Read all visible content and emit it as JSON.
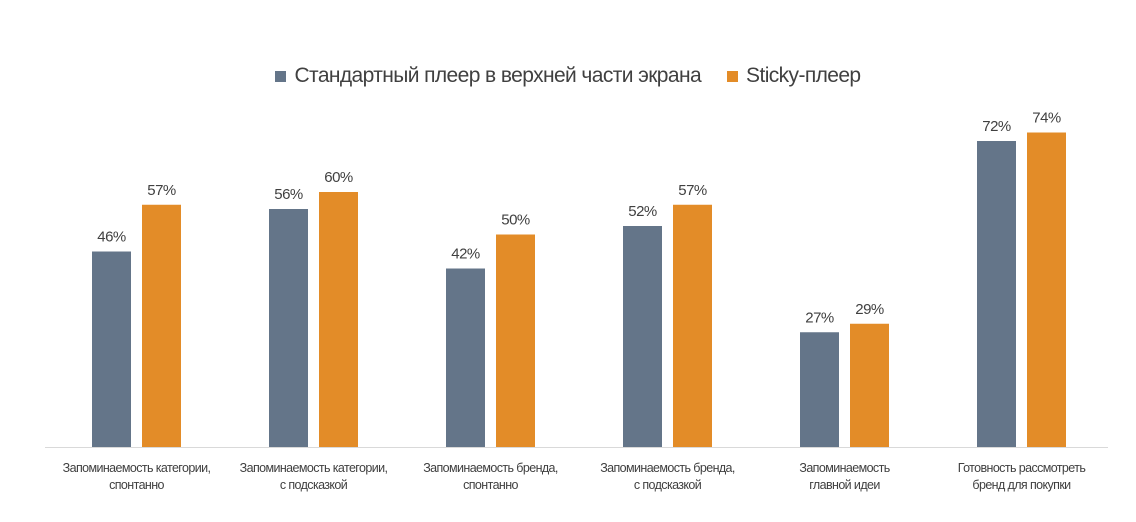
{
  "chart_data": {
    "type": "bar",
    "title": "",
    "xlabel": "",
    "ylabel": "",
    "ylim": [
      0,
      80
    ],
    "grid": false,
    "legend_position": "top",
    "value_suffix": "%",
    "categories": [
      [
        "Запоминаемость категории,",
        "спонтанно"
      ],
      [
        "Запоминаемость категории,",
        "с подсказкой"
      ],
      [
        "Запоминаемость бренда,",
        "спонтанно"
      ],
      [
        "Запоминаемость бренда,",
        "с подсказкой"
      ],
      [
        "Запоминаемость",
        "главной идеи"
      ],
      [
        "Готовность рассмотреть",
        "бренд для покупки"
      ]
    ],
    "series": [
      {
        "name": "Стандартный плеер в верхней части экрана",
        "color": "#647589",
        "values": [
          46,
          56,
          42,
          52,
          27,
          72
        ]
      },
      {
        "name": "Sticky-плеер",
        "color": "#E38C28",
        "values": [
          57,
          60,
          50,
          57,
          29,
          74
        ]
      }
    ]
  }
}
